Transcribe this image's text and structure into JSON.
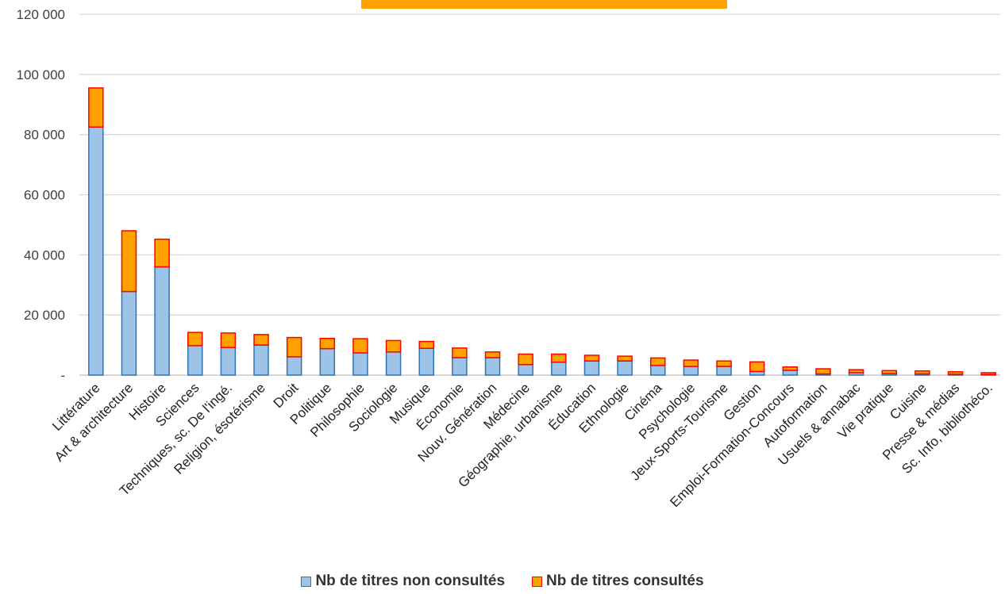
{
  "chart_data": {
    "type": "bar",
    "stacked": true,
    "categories": [
      "Littérature",
      "Art & architecture",
      "Histoire",
      "Sciences",
      "Techniques, sc. De l'ingé.",
      "Religion, ésotérisme",
      "Droit",
      "Politique",
      "Philosophie",
      "Sociologie",
      "Musique",
      "Économie",
      "Nouv. Génération",
      "Médecine",
      "Géographie, urbanisme",
      "Éducation",
      "Ethnologie",
      "Cinéma",
      "Psychologie",
      "Jeux-Sports-Tourisme",
      "Gestion",
      "Emploi-Formation-Concours",
      "Autoformation",
      "Usuels & annabac",
      "Vie pratique",
      "Cuisine",
      "Presse & médias",
      "Sc. Info, bibliothéco."
    ],
    "series": [
      {
        "name": "Nb de titres non consultés",
        "color": "#9dc3e6",
        "border": "#2e75b6",
        "values": [
          82500,
          27800,
          36000,
          9800,
          9200,
          10000,
          6100,
          8800,
          7400,
          7700,
          8900,
          5800,
          5800,
          3500,
          4300,
          4700,
          4700,
          3200,
          2900,
          2900,
          1200,
          1600,
          400,
          800,
          500,
          400,
          300,
          200
        ]
      },
      {
        "name": "Nb de titres consultés",
        "color": "#ffa200",
        "border": "#ff0000",
        "values": [
          13000,
          20200,
          9200,
          4400,
          4800,
          3500,
          6400,
          3400,
          4700,
          3800,
          2300,
          3200,
          1900,
          3500,
          2700,
          1900,
          1600,
          2500,
          2100,
          1800,
          3200,
          1100,
          1700,
          1000,
          1000,
          1000,
          800,
          600
        ]
      }
    ],
    "yticks": [
      "120 000",
      "100 000",
      "80 000",
      "60 000",
      "40 000",
      "20 000",
      "-"
    ],
    "ylim": [
      0,
      120000
    ],
    "title": "",
    "xlabel": "",
    "ylabel": "",
    "grid": true,
    "legend_position": "bottom"
  },
  "legend": {
    "non_consulted": "Nb de titres non consultés",
    "consulted": "Nb de titres consultés"
  }
}
